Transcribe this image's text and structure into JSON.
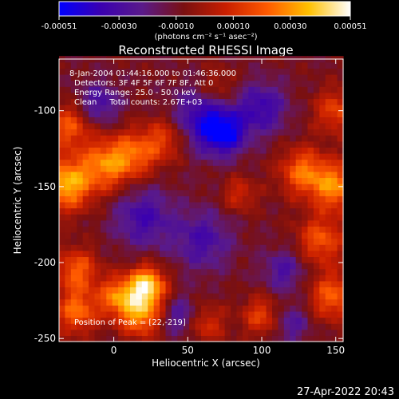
{
  "colorbar": {
    "tick_labels": [
      "-0.00051",
      "-0.00030",
      "-0.00010",
      "0.00010",
      "0.00030",
      "0.00051"
    ],
    "tick_values": [
      -0.00051,
      -0.0003,
      -0.0001,
      0.0001,
      0.0003,
      0.00051
    ],
    "range": [
      -0.00051,
      0.00051
    ],
    "units_label": "(photons cm⁻² s⁻¹ asec⁻²)",
    "colormap": [
      "#0000ff",
      "#3a00b0",
      "#5a1a8a",
      "#7a1010",
      "#c81e00",
      "#ff5a00",
      "#ffc000",
      "#ffffff"
    ]
  },
  "chart_data": {
    "type": "heatmap",
    "title": "Reconstructed RHESSI Image",
    "xlabel": "Heliocentric X (arcsec)",
    "ylabel": "Heliocentric Y (arcsec)",
    "xlim": [
      -37,
      155
    ],
    "ylim": [
      -252,
      -66
    ],
    "x_ticks": [
      0,
      50,
      100,
      150
    ],
    "y_ticks": [
      -100,
      -150,
      -200,
      -250
    ],
    "x_tick_labels": [
      "0",
      "50",
      "100",
      "150"
    ],
    "y_tick_labels": [
      "-100",
      "-150",
      "-200",
      "-250"
    ],
    "annotations": [
      "8-Jan-2004 01:44:16.000 to 01:46:36.000",
      "Detectors: 3F 4F 5F 6F 7F 8F, Att 0",
      "Energy Range: 25.0 - 50.0 keV",
      "Clean     Total counts: 2.67E+03"
    ],
    "peak_label": "Position of Peak = [22,-219]",
    "peak_position": [
      22,
      -219
    ],
    "value_range": [
      -0.00051,
      0.00051
    ],
    "blobs": [
      {
        "x": 22,
        "y": -215,
        "r": 9,
        "v": 0.00051
      },
      {
        "x": 18,
        "y": -234,
        "r": 10,
        "v": 0.00038
      },
      {
        "x": 2,
        "y": -222,
        "r": 9,
        "v": 0.00032
      },
      {
        "x": -32,
        "y": -148,
        "r": 12,
        "v": 0.00044
      },
      {
        "x": -30,
        "y": -110,
        "r": 10,
        "v": 0.00028
      },
      {
        "x": -5,
        "y": -135,
        "r": 12,
        "v": 0.00034
      },
      {
        "x": 15,
        "y": -128,
        "r": 11,
        "v": 0.00026
      },
      {
        "x": 35,
        "y": -118,
        "r": 10,
        "v": 0.00022
      },
      {
        "x": 150,
        "y": -100,
        "r": 10,
        "v": 0.00024
      },
      {
        "x": 128,
        "y": -140,
        "r": 11,
        "v": 0.00032
      },
      {
        "x": 150,
        "y": -150,
        "r": 11,
        "v": 0.00036
      },
      {
        "x": 140,
        "y": -185,
        "r": 11,
        "v": 0.00028
      },
      {
        "x": 148,
        "y": -222,
        "r": 11,
        "v": 0.0003
      },
      {
        "x": 100,
        "y": -235,
        "r": 9,
        "v": 0.00024
      },
      {
        "x": 62,
        "y": -240,
        "r": 9,
        "v": 0.0002
      },
      {
        "x": -25,
        "y": -205,
        "r": 10,
        "v": 0.0003
      },
      {
        "x": -25,
        "y": -232,
        "r": 10,
        "v": 0.00032
      },
      {
        "x": 85,
        "y": -155,
        "r": 8,
        "v": 0.00018
      },
      {
        "x": 70,
        "y": -85,
        "r": 9,
        "v": 0.00016
      },
      {
        "x": 60,
        "y": -105,
        "r": 14,
        "v": -0.0003
      },
      {
        "x": 75,
        "y": -115,
        "r": 10,
        "v": -0.00034
      },
      {
        "x": 100,
        "y": -98,
        "r": 12,
        "v": -0.00026
      },
      {
        "x": -10,
        "y": -95,
        "r": 10,
        "v": -0.00022
      },
      {
        "x": 20,
        "y": -170,
        "r": 14,
        "v": -0.00024
      },
      {
        "x": 60,
        "y": -185,
        "r": 14,
        "v": -0.00022
      },
      {
        "x": 45,
        "y": -235,
        "r": 9,
        "v": -0.0002
      },
      {
        "x": 115,
        "y": -205,
        "r": 10,
        "v": -0.0002
      },
      {
        "x": 120,
        "y": -240,
        "r": 9,
        "v": -0.00018
      }
    ]
  },
  "timestamp": "27-Apr-2022 20:43"
}
